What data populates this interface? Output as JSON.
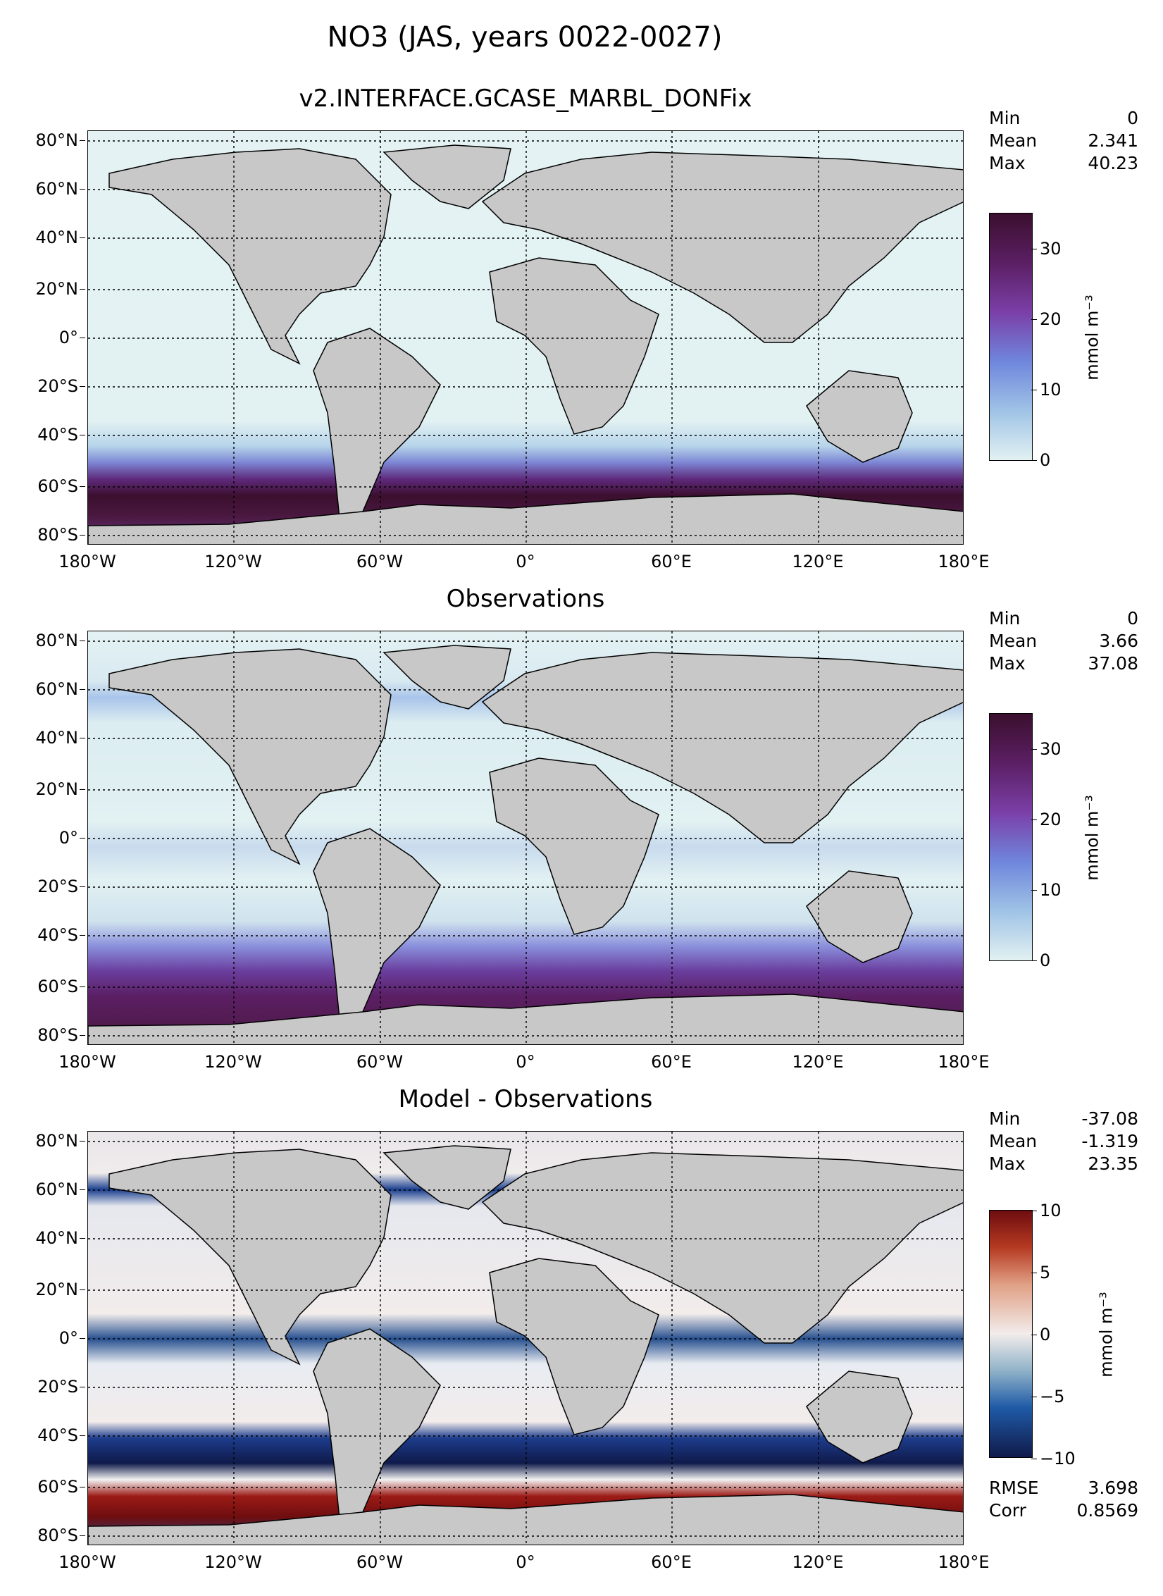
{
  "figure_title": "NO3 (JAS, years 0022-0027)",
  "colors": {
    "land": "#c8c8c8",
    "seq_low": "#e2f1f2",
    "seq_mid": "#7a8fd8",
    "seq_hi": "#6b2c8a",
    "seq_max": "#3b0f2e",
    "div_neg": "#101a4a",
    "div_mid": "#f2eceb",
    "div_pos": "#6e0d0f"
  },
  "chart_data": [
    {
      "type": "heatmap",
      "title": "v2.INTERFACE.GCASE_MARBL_DONFix",
      "x_ticks": [
        "180°W",
        "120°W",
        "60°W",
        "0°",
        "60°E",
        "120°E",
        "180°E"
      ],
      "y_ticks": [
        "80°N",
        "60°N",
        "40°N",
        "20°N",
        "0°",
        "20°S",
        "40°S",
        "60°S",
        "80°S"
      ],
      "xlim": [
        -180,
        180
      ],
      "ylim": [
        -85,
        85
      ],
      "stats": {
        "min_label": "Min",
        "min": "0",
        "mean_label": "Mean",
        "mean": "2.341",
        "max_label": "Max",
        "max": "40.23"
      },
      "colorbar": {
        "ticks": [
          "0",
          "10",
          "20",
          "30"
        ],
        "range": [
          0,
          35
        ],
        "label": "mmol m⁻³"
      }
    },
    {
      "type": "heatmap",
      "title": "Observations",
      "x_ticks": [
        "180°W",
        "120°W",
        "60°W",
        "0°",
        "60°E",
        "120°E",
        "180°E"
      ],
      "y_ticks": [
        "80°N",
        "60°N",
        "40°N",
        "20°N",
        "0°",
        "20°S",
        "40°S",
        "60°S",
        "80°S"
      ],
      "xlim": [
        -180,
        180
      ],
      "ylim": [
        -85,
        85
      ],
      "stats": {
        "min_label": "Min",
        "min": "0",
        "mean_label": "Mean",
        "mean": "3.66",
        "max_label": "Max",
        "max": "37.08"
      },
      "colorbar": {
        "ticks": [
          "0",
          "10",
          "20",
          "30"
        ],
        "range": [
          0,
          35
        ],
        "label": "mmol m⁻³"
      }
    },
    {
      "type": "heatmap",
      "title": "Model - Observations",
      "x_ticks": [
        "180°W",
        "120°W",
        "60°W",
        "0°",
        "60°E",
        "120°E",
        "180°E"
      ],
      "y_ticks": [
        "80°N",
        "60°N",
        "40°N",
        "20°N",
        "0°",
        "20°S",
        "40°S",
        "60°S",
        "80°S"
      ],
      "xlim": [
        -180,
        180
      ],
      "ylim": [
        -85,
        85
      ],
      "stats": {
        "min_label": "Min",
        "min": "-37.08",
        "mean_label": "Mean",
        "mean": "-1.319",
        "max_label": "Max",
        "max": "23.35"
      },
      "colorbar": {
        "ticks": [
          "10",
          "5",
          "0",
          "−5",
          "−10"
        ],
        "range": [
          -10,
          10
        ],
        "label": "mmol m⁻³"
      },
      "rmse_label": "RMSE",
      "rmse": "3.698",
      "corr_label": "Corr",
      "corr": "0.8569"
    }
  ]
}
